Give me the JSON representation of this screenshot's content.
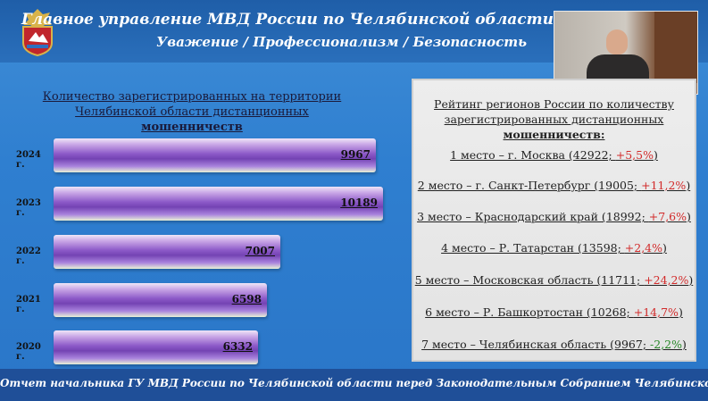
{
  "header": {
    "title": "Главное управление МВД России по Челябинской области",
    "subtitle": "Уважение / Профессионализм / Безопасность"
  },
  "chart_data": {
    "type": "bar",
    "orientation": "horizontal",
    "title_line1": "Количество зарегистрированных на территории",
    "title_line2_prefix": "Челябинской области дистанционных",
    "title_line2_bold": "мошенничеств",
    "categories": [
      "2024 г.",
      "2023 г.",
      "2022 г.",
      "2021 г.",
      "2020 г."
    ],
    "values": [
      9967,
      10189,
      7007,
      6598,
      6332
    ],
    "value_labels": [
      "9967",
      "10189",
      "7007",
      "6598",
      "6332"
    ],
    "xlim": [
      0,
      10500
    ]
  },
  "rating": {
    "title_line1": "Рейтинг регионов России по количеству",
    "title_line2": "зарегистрированных дистанционных",
    "title_line3": "мошенничеств:",
    "items": [
      {
        "text": "1 место – г. Москва (42922; ",
        "delta": "+5,5%",
        "close": ")",
        "tone": "red"
      },
      {
        "text": "2 место – г. Санкт-Петербург (19005; ",
        "delta": "+11,2%",
        "close": ")",
        "tone": "red"
      },
      {
        "text": "3 место – Краснодарский край (18992; ",
        "delta": "+7,6%",
        "close": ")",
        "tone": "red"
      },
      {
        "text": "4 место – Р. Татарстан (13598; ",
        "delta": "+2,4%",
        "close": ")",
        "tone": "red"
      },
      {
        "text": "5 место – Московская область (11711; ",
        "delta": "+24,2%",
        "close": ")",
        "tone": "red"
      },
      {
        "text": "6 место – Р. Башкортостан (10268; ",
        "delta": "+14,7%",
        "close": ")",
        "tone": "red"
      },
      {
        "text": "7 место – Челябинская область (9967; ",
        "delta": "-2,2%",
        "close": ")",
        "tone": "green"
      }
    ]
  },
  "footer": {
    "text": "Отчет начальника ГУ МВД России по Челябинской области перед Законодательным Собранием Челябинской области"
  },
  "colors": {
    "background": "#2f7fd0",
    "header": "#1f5ea8",
    "footer": "#1f4f98",
    "bar": "#8d5ac8",
    "increase": "#d22b2b",
    "decrease": "#2a8a2a"
  }
}
